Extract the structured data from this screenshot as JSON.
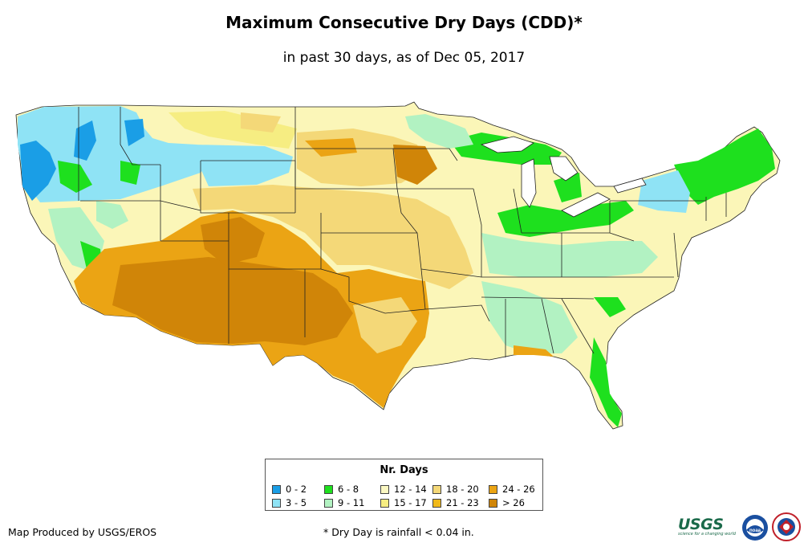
{
  "title": "Maximum Consecutive Dry Days (CDD)*",
  "subtitle": "in past 30 days, as of Dec 05, 2017",
  "legend": {
    "title": "Nr. Days",
    "items": [
      {
        "label": "0 - 2",
        "color": "#1a9ee6"
      },
      {
        "label": "3 - 5",
        "color": "#8fe3f5"
      },
      {
        "label": "6 - 8",
        "color": "#1ee01e"
      },
      {
        "label": "9 - 11",
        "color": "#b2f2c2"
      },
      {
        "label": "12 - 14",
        "color": "#fbf8c2"
      },
      {
        "label": "15 - 17",
        "color": "#f6ed82"
      },
      {
        "label": "18 - 20",
        "color": "#f4d878"
      },
      {
        "label": "21 - 23",
        "color": "#f0b91a"
      },
      {
        "label": "24 - 26",
        "color": "#eba414"
      },
      {
        "label": "> 26",
        "color": "#d08508"
      }
    ]
  },
  "footer": {
    "credit": "Map Produced by USGS/EROS",
    "note": "* Dry Day is rainfall < 0.04 in."
  },
  "logos": {
    "usgs": "USGS",
    "usgs_tagline": "science for a changing world",
    "noaa": "noaa"
  }
}
